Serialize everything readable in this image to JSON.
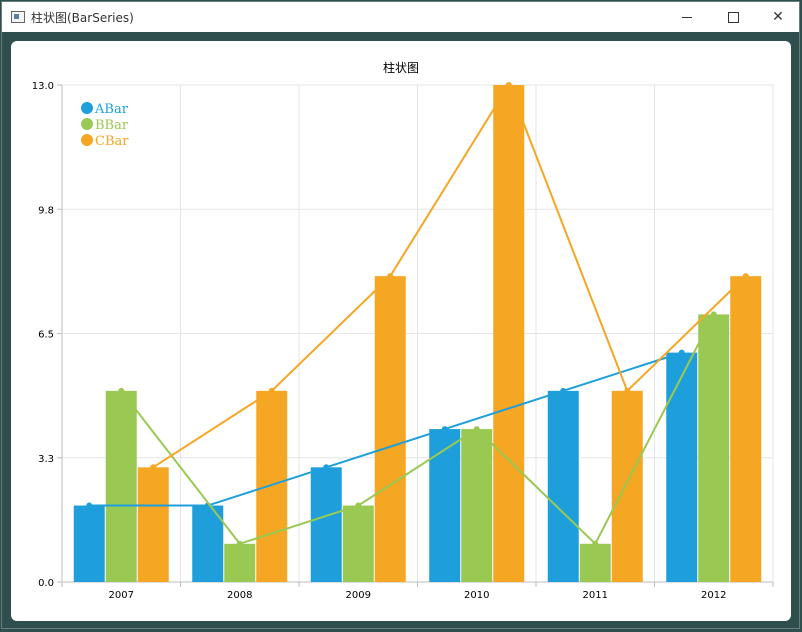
{
  "window": {
    "title": "柱状图(BarSeries)",
    "minimize_label": "—",
    "maximize_label": "☐",
    "close_label": "✕"
  },
  "chart_data": {
    "type": "bar",
    "title": "柱状图",
    "categories": [
      "2007",
      "2008",
      "2009",
      "2010",
      "2011",
      "2012"
    ],
    "ylim": [
      0,
      13
    ],
    "yticks": [
      "0.0",
      "3.3",
      "6.5",
      "9.8",
      "13.0"
    ],
    "ytick_values": [
      0,
      3.25,
      6.5,
      9.75,
      13
    ],
    "grid": true,
    "legend_position": "top-left",
    "series": [
      {
        "name": "ABar",
        "color": "#1e9fdc",
        "values": [
          2,
          2,
          3,
          4,
          5,
          6
        ]
      },
      {
        "name": "BBar",
        "color": "#99c952",
        "values": [
          5,
          1,
          2,
          4,
          1,
          7
        ]
      },
      {
        "name": "CBar",
        "color": "#f5a623",
        "values": [
          3,
          5,
          8,
          13,
          5,
          8
        ]
      }
    ],
    "overlay_lines": "each series is also drawn as a line with dot markers over its bars"
  }
}
